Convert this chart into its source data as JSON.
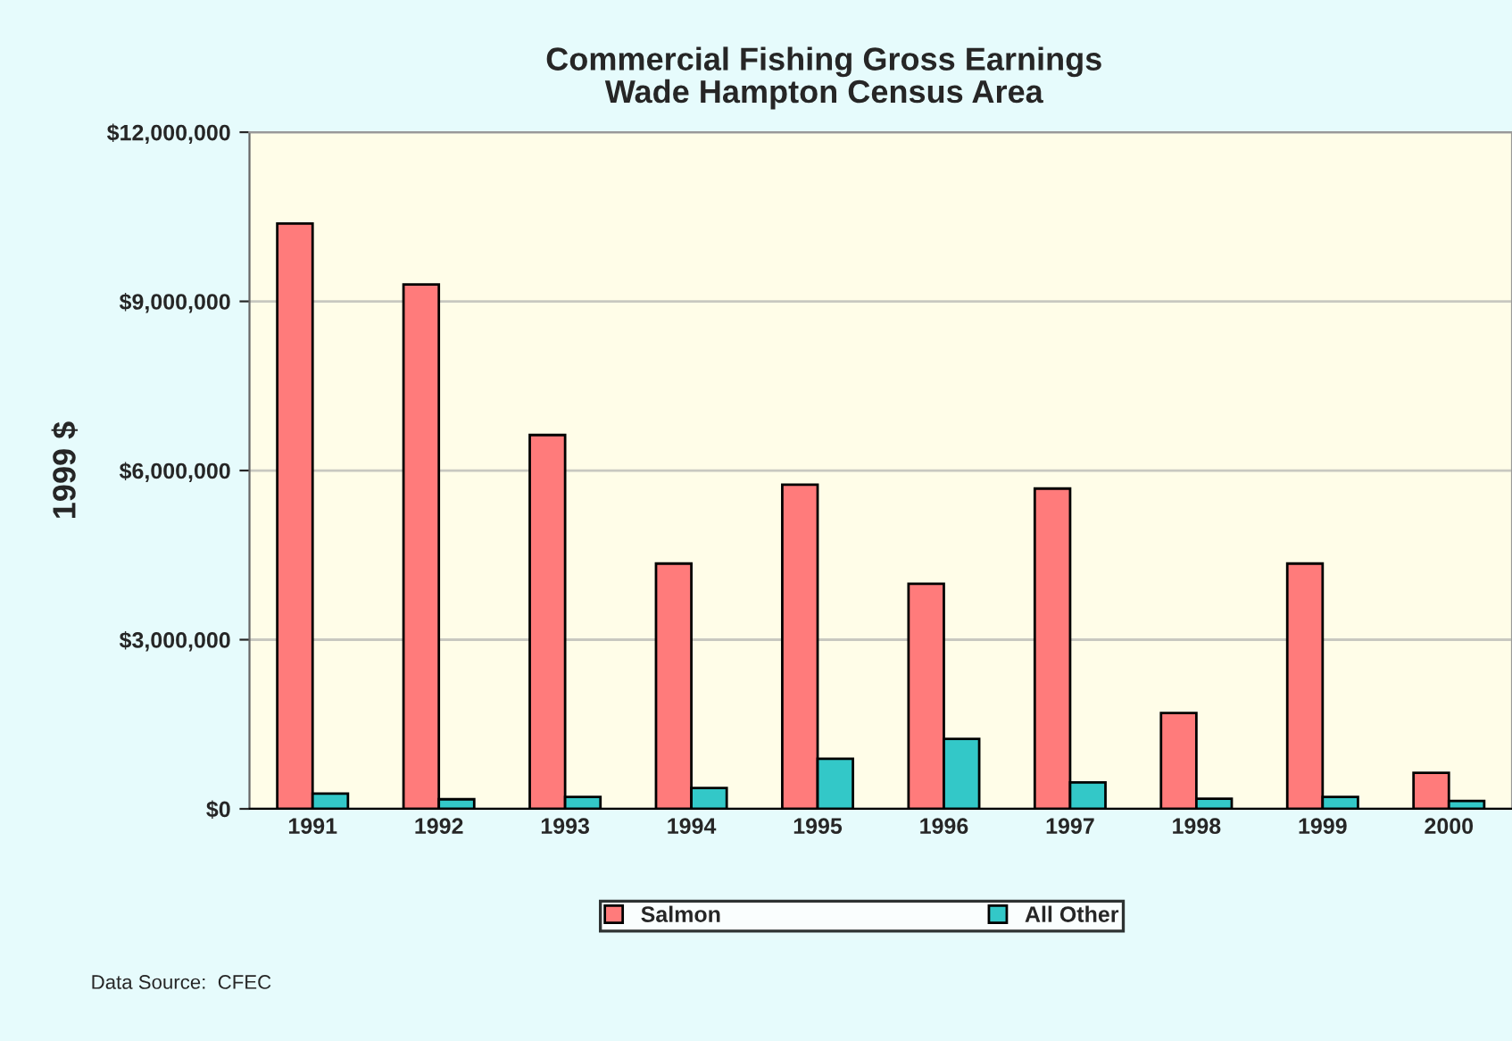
{
  "chart_data": {
    "type": "bar",
    "title": "Commercial Fishing Gross Earnings\nWade Hampton Census Area",
    "ylabel": "1999 $",
    "categories": [
      "1991",
      "1992",
      "1993",
      "1994",
      "1995",
      "1996",
      "1997",
      "1998",
      "1999",
      "2000"
    ],
    "series": [
      {
        "name": "Salmon",
        "color": "#ff7b7b",
        "values": [
          10380000,
          9300000,
          6630000,
          4350000,
          5750000,
          3990000,
          5680000,
          1700000,
          4350000,
          640000
        ]
      },
      {
        "name": "All Other",
        "color": "#33c8c8",
        "values": [
          270000,
          170000,
          210000,
          370000,
          890000,
          1240000,
          470000,
          180000,
          210000,
          140000
        ]
      }
    ],
    "ylim": [
      0,
      12000000
    ],
    "yticks": [
      {
        "value": 0,
        "label": "$0"
      },
      {
        "value": 3000000,
        "label": "$3,000,000"
      },
      {
        "value": 6000000,
        "label": "$6,000,000"
      },
      {
        "value": 9000000,
        "label": "$9,000,000"
      },
      {
        "value": 12000000,
        "label": "$12,000,000"
      }
    ],
    "grid": "y",
    "legend": "bottom",
    "annotations": [
      "Data Source:  CFEC"
    ]
  }
}
